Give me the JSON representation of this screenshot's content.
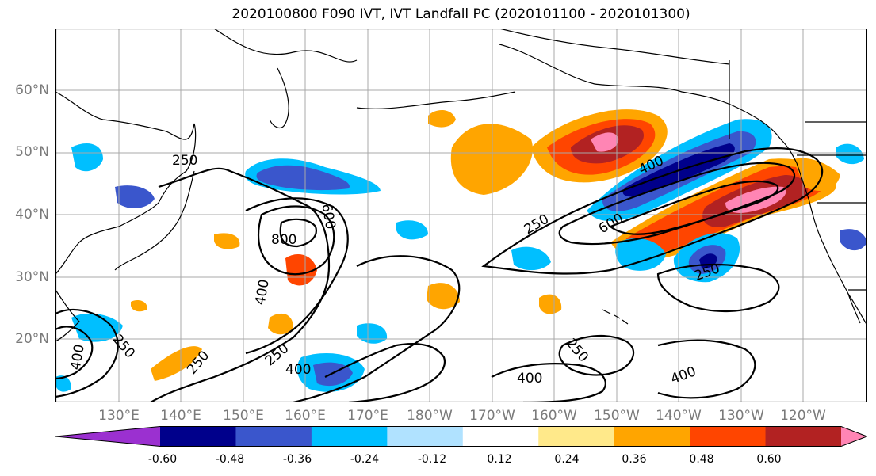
{
  "title": "2020100800 F090 IVT, IVT Landfall PC (2020101100 - 2020101300)",
  "map": {
    "lat_labels": [
      "60°N",
      "50°N",
      "40°N",
      "30°N",
      "20°N"
    ],
    "lon_labels": [
      "130°E",
      "140°E",
      "150°E",
      "160°E",
      "170°E",
      "180°W",
      "170°W",
      "160°W",
      "150°W",
      "140°W",
      "130°W",
      "120°W"
    ],
    "contour_labels": [
      "250",
      "600",
      "800",
      "400",
      "250",
      "400",
      "250",
      "400",
      "250",
      "600",
      "400",
      "250",
      "400",
      "250",
      "400",
      "250"
    ]
  },
  "colorbar": {
    "tick_labels": [
      "-0.60",
      "-0.48",
      "-0.36",
      "-0.24",
      "-0.12",
      "0.12",
      "0.24",
      "0.36",
      "0.48",
      "0.60"
    ],
    "colors": [
      "#9b30d0",
      "#00008b",
      "#3a56cc",
      "#00bfff",
      "#b0e2ff",
      "#ffffff",
      "#ffe98a",
      "#ffa500",
      "#ff4500",
      "#b22222",
      "#ff85b4"
    ]
  }
}
